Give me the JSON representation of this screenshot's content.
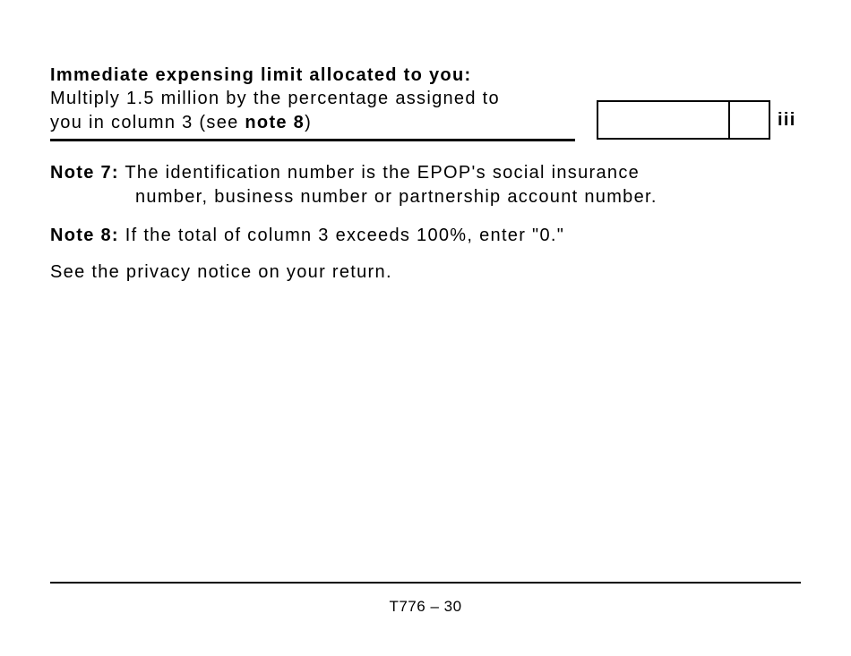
{
  "section": {
    "title": "Immediate expensing limit allocated to you:",
    "line1": "Multiply 1.5 million by the percentage assigned to",
    "line2_prefix": "you in column 3 (see ",
    "line2_bold": "note 8",
    "line2_suffix": ")",
    "line_code": "iii",
    "amount_value": "",
    "cents_value": ""
  },
  "notes": [
    {
      "label": "Note 7:",
      "text1": "The identification number is the EPOP's social insurance",
      "text2": "number, business number or partnership account number."
    },
    {
      "label": "Note 8:",
      "text1": "If the total of column 3 exceeds 100%, enter \"0.\""
    }
  ],
  "privacy": "See the privacy notice on your return.",
  "footer": {
    "page": "T776 – 30"
  }
}
